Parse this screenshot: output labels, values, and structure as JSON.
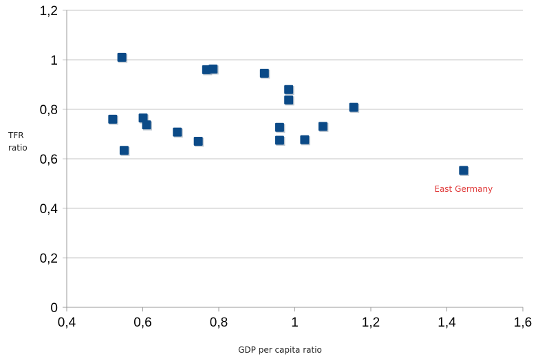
{
  "chart_data": {
    "type": "scatter",
    "title": "",
    "xlabel": "GDP per capita ratio",
    "ylabel": "TFR\nratio",
    "xlim": [
      0.4,
      1.6
    ],
    "ylim": [
      0,
      1.2
    ],
    "x_ticks": [
      "0,4",
      "0,6",
      "0,8",
      "1",
      "1,2",
      "1,4",
      "1,6"
    ],
    "y_ticks": [
      "0",
      "0,2",
      "0,4",
      "0,6",
      "0,8",
      "1",
      "1,2"
    ],
    "grid": "horizontal",
    "marker_color": "#0b4a87",
    "annotation_color": "#e03a3a",
    "points": [
      {
        "x": 0.545,
        "y": 1.01
      },
      {
        "x": 0.521,
        "y": 0.76
      },
      {
        "x": 0.551,
        "y": 0.634
      },
      {
        "x": 0.601,
        "y": 0.765
      },
      {
        "x": 0.61,
        "y": 0.737
      },
      {
        "x": 0.691,
        "y": 0.708
      },
      {
        "x": 0.746,
        "y": 0.671
      },
      {
        "x": 0.768,
        "y": 0.96
      },
      {
        "x": 0.785,
        "y": 0.963
      },
      {
        "x": 0.92,
        "y": 0.946
      },
      {
        "x": 0.96,
        "y": 0.727
      },
      {
        "x": 0.96,
        "y": 0.675
      },
      {
        "x": 0.984,
        "y": 0.88
      },
      {
        "x": 0.984,
        "y": 0.838
      },
      {
        "x": 1.026,
        "y": 0.677
      },
      {
        "x": 1.074,
        "y": 0.731
      },
      {
        "x": 1.155,
        "y": 0.808
      },
      {
        "x": 1.444,
        "y": 0.553
      }
    ],
    "annotations": [
      {
        "text": "East Germany",
        "x": 1.444,
        "y": 0.553
      }
    ]
  }
}
